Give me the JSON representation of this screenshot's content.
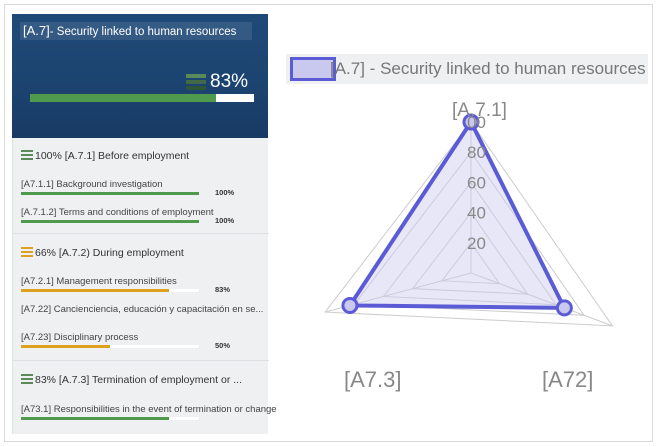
{
  "summary": {
    "code": "[A.7]",
    "title": "- Security linked to human resources",
    "percent_label": "83%",
    "percent": 83
  },
  "groups": [
    {
      "heading": "100% [A.7.1] Before employment",
      "icon_color": "#5b8a5a",
      "items": [
        {
          "label": "[A7.1.1] Background investigation",
          "pct_label": "100%",
          "progress": 100,
          "color": "#4f9a4c"
        },
        {
          "label": "[A.7.1.2] Terms and conditions of employment",
          "pct_label": "100%",
          "progress": 100,
          "color": "#4f9a4c"
        }
      ]
    },
    {
      "heading": "66% [A.7.2) During employment",
      "icon_color": "#e0a020",
      "items": [
        {
          "label": "[A7.2.1] Management responsibilities",
          "pct_label": "83%",
          "progress": 83,
          "color": "#e0a020"
        },
        {
          "label": "[A7.22] Cancienciencia, educación y capacitación en se...",
          "pct_label": "",
          "progress": 0,
          "color": "#e0a020"
        },
        {
          "label": "[A7.23] Disciplinary process",
          "pct_label": "50%",
          "progress": 50,
          "color": "#e0a020"
        }
      ]
    },
    {
      "heading": "83% [A.7.3] Termination of employment or ...",
      "icon_color": "#5b8a5a",
      "items": [
        {
          "label": "[A73.1] Responsibilities in the event of termination or change",
          "pct_label": "",
          "progress": 83,
          "color": "#4f9a4c"
        }
      ]
    }
  ],
  "chart_data": {
    "type": "radar",
    "legend": "[A.7] - Security linked to human resources",
    "axes": [
      "[A.7.1]",
      "[A72]",
      "[A7.3]"
    ],
    "ticks": [
      "20",
      "40",
      "60",
      "80",
      "00"
    ],
    "rmax": 100,
    "series": [
      {
        "name": "[A.7] - Security linked to human resources",
        "values": [
          100,
          66,
          83
        ]
      }
    ],
    "colors": {
      "line": "#5b5bd6",
      "fill": "#c9c9ef",
      "grid": "#cccccc"
    }
  }
}
